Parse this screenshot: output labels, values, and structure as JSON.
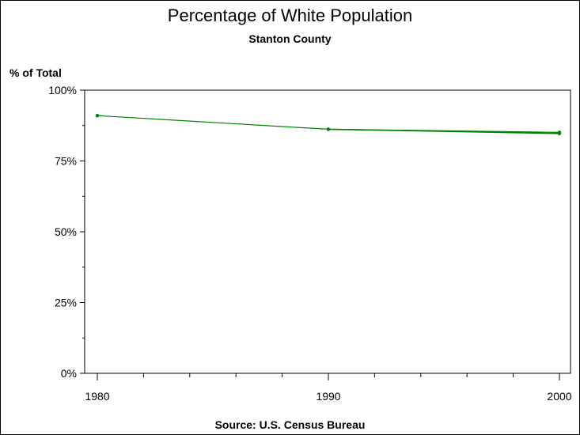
{
  "chart_data": {
    "type": "line",
    "title": "Percentage of White Population",
    "subtitle": "Stanton County",
    "ylabel": "% of Total",
    "footnote": "Source: U.S. Census Bureau",
    "x": [
      1980,
      1990,
      2000
    ],
    "xlim": [
      1980,
      2000
    ],
    "x_tick_labels": [
      "1980",
      "1990",
      "2000"
    ],
    "ylim": [
      0,
      100
    ],
    "y_ticks": [
      0,
      25,
      50,
      75,
      100
    ],
    "y_tick_labels": [
      "0%",
      "25%",
      "50%",
      "75%",
      "100%"
    ],
    "grid": false,
    "series": [
      {
        "values": [
          91,
          86.2,
          85.1
        ],
        "color": "#008000"
      },
      {
        "values": [
          null,
          86.2,
          84.7
        ],
        "color": "#008000"
      }
    ]
  }
}
